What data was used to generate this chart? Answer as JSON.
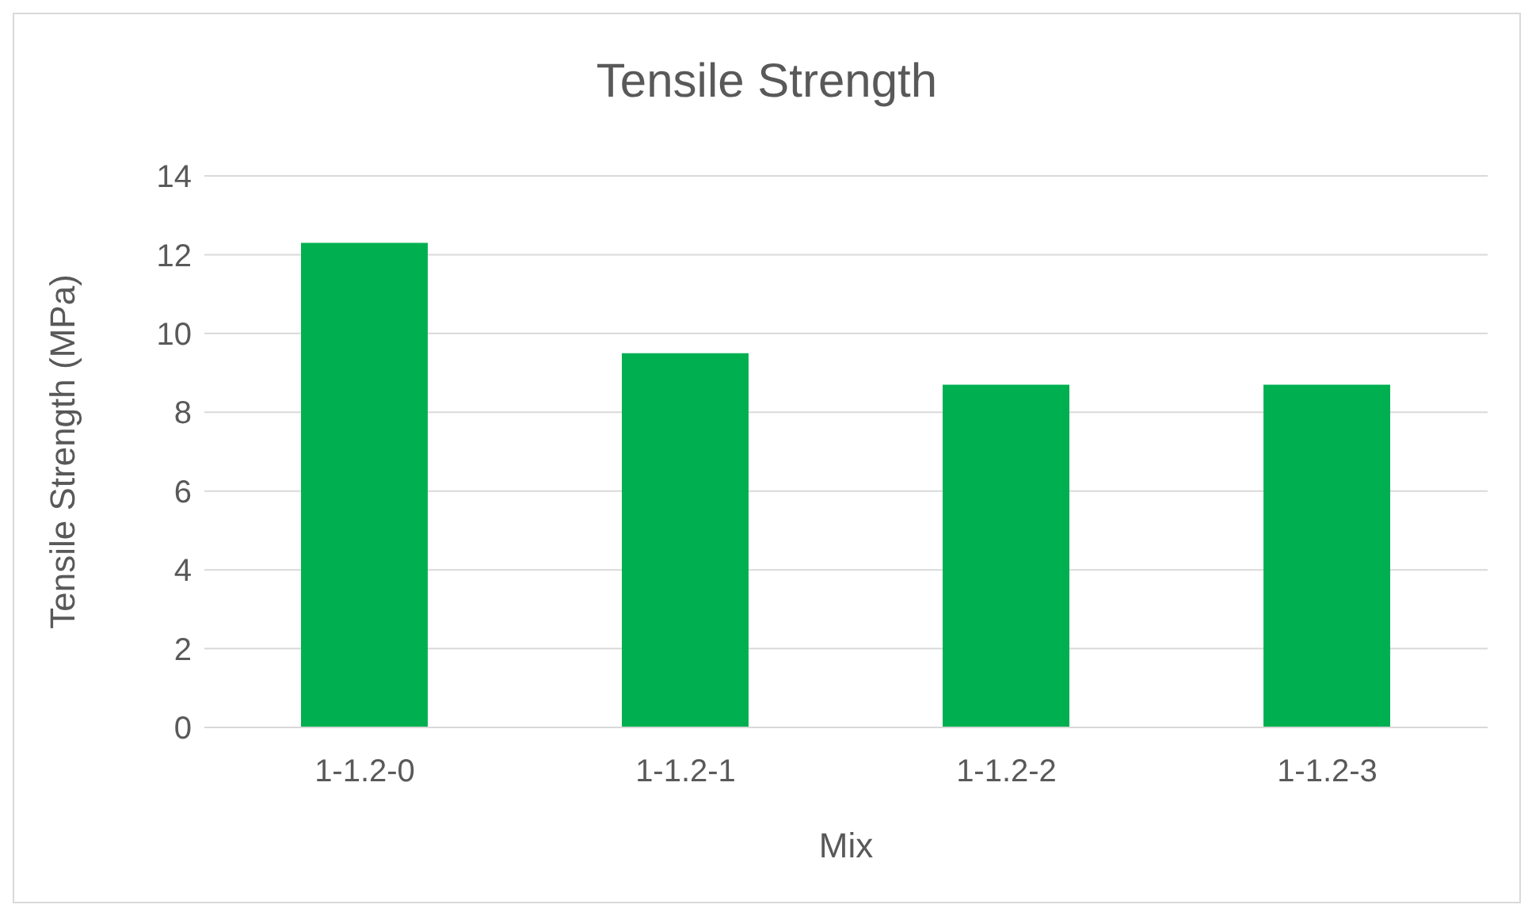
{
  "chart_data": {
    "type": "bar",
    "title": "Tensile Strength",
    "xlabel": "Mix",
    "ylabel": "Tensile Strength (MPa)",
    "categories": [
      "1-1.2-0",
      "1-1.2-1",
      "1-1.2-2",
      "1-1.2-3"
    ],
    "values": [
      12.3,
      9.5,
      8.7,
      8.7
    ],
    "color": "#00b050",
    "ylim": [
      0,
      14
    ],
    "yticks": [
      0,
      2,
      4,
      6,
      8,
      10,
      12,
      14
    ],
    "grid": "y"
  }
}
